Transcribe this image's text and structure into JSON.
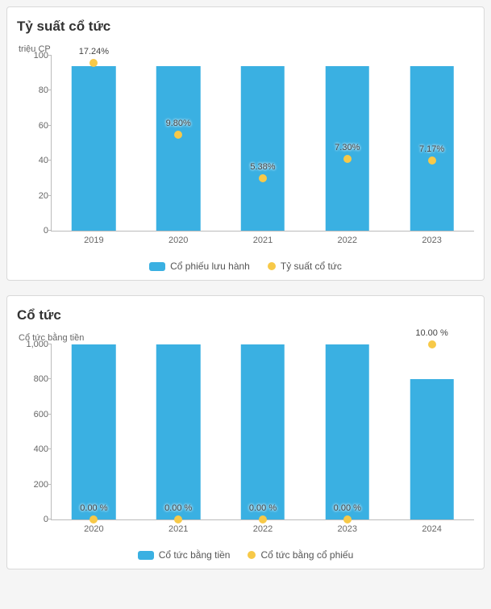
{
  "chart1": {
    "type": "bar-with-markers",
    "title": "Tỷ suất cổ tức",
    "y_axis_label": "triệu CP",
    "background_color": "#ffffff",
    "border_color": "#d9d9d9",
    "axis_color": "#bbbbbb",
    "tick_font_color": "#666666",
    "title_fontsize": 17,
    "label_fontsize": 11,
    "categories": [
      "2019",
      "2020",
      "2021",
      "2022",
      "2023"
    ],
    "bar_values": [
      94,
      94,
      94,
      94,
      94
    ],
    "bar_color": "#3ab0e2",
    "bar_width_pct": 52,
    "ylim": [
      0,
      100
    ],
    "ytick_step": 20,
    "yticks": [
      0,
      20,
      40,
      60,
      80,
      100
    ],
    "marker_values": [
      96,
      55,
      30,
      41,
      40
    ],
    "marker_labels": [
      "17.24%",
      "9.80%",
      "5.38%",
      "7.30%",
      "7.17%"
    ],
    "marker_color": "#f7c948",
    "marker_size": 10,
    "legend": [
      {
        "type": "rect",
        "label": "Cổ phiếu lưu hành",
        "color": "#3ab0e2"
      },
      {
        "type": "dot",
        "label": "Tỷ suất cổ tức",
        "color": "#f7c948"
      }
    ]
  },
  "chart2": {
    "type": "bar-with-markers",
    "title": "Cổ tức",
    "y_axis_label": "Cổ tức bằng tiền",
    "background_color": "#ffffff",
    "border_color": "#d9d9d9",
    "axis_color": "#bbbbbb",
    "tick_font_color": "#666666",
    "title_fontsize": 17,
    "label_fontsize": 11,
    "categories": [
      "2020",
      "2021",
      "2022",
      "2023",
      "2024"
    ],
    "bar_values": [
      1000,
      1000,
      1000,
      1000,
      800
    ],
    "bar_color": "#3ab0e2",
    "bar_width_pct": 52,
    "ylim": [
      0,
      1000
    ],
    "ytick_step": 200,
    "yticks": [
      0,
      200,
      400,
      600,
      800,
      1000
    ],
    "marker_values": [
      2,
      2,
      2,
      2,
      1000
    ],
    "marker_labels": [
      "0.00 %",
      "0.00 %",
      "0.00 %",
      "0.00 %",
      "10.00 %"
    ],
    "marker_color": "#f7c948",
    "marker_size": 10,
    "legend": [
      {
        "type": "rect",
        "label": "Cổ tức bằng tiền",
        "color": "#3ab0e2"
      },
      {
        "type": "dot",
        "label": "Cổ tức bằng cổ phiếu",
        "color": "#f7c948"
      }
    ]
  }
}
